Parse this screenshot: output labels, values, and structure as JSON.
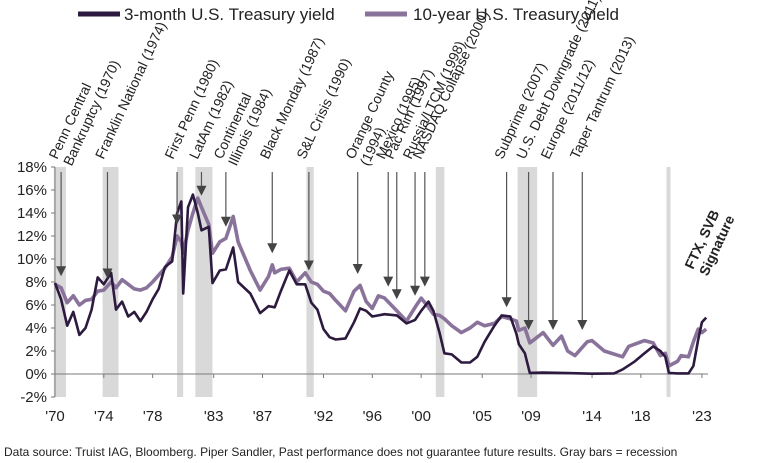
{
  "chart_data": {
    "type": "line",
    "title": "",
    "xlabel": "",
    "ylabel": "",
    "ylim": [
      -2,
      18
    ],
    "xlim": [
      1970,
      2023.5
    ],
    "yticks": [
      "18%",
      "16%",
      "14%",
      "12%",
      "10%",
      "8%",
      "6%",
      "4%",
      "2%",
      "0%",
      "-2%"
    ],
    "xticks": [
      {
        "label": "'70",
        "year": 1970
      },
      {
        "label": "'74",
        "year": 1974
      },
      {
        "label": "'78",
        "year": 1978
      },
      {
        "label": "'83",
        "year": 1983
      },
      {
        "label": "'87",
        "year": 1987
      },
      {
        "label": "'92",
        "year": 1992
      },
      {
        "label": "'96",
        "year": 1996
      },
      {
        "label": "'00",
        "year": 2000
      },
      {
        "label": "'05",
        "year": 2005
      },
      {
        "label": "'09",
        "year": 2009
      },
      {
        "label": "'14",
        "year": 2014
      },
      {
        "label": "'18",
        "year": 2018
      },
      {
        "label": "'23",
        "year": 2023
      }
    ],
    "legend": {
      "placement": "top"
    },
    "recessions": [
      [
        1969.9,
        1970.9
      ],
      [
        1973.9,
        1975.2
      ],
      [
        1980.0,
        1980.5
      ],
      [
        1981.5,
        1982.9
      ],
      [
        1990.6,
        1991.2
      ],
      [
        2001.2,
        2001.9
      ],
      [
        2007.9,
        2009.5
      ],
      [
        2020.1,
        2020.4
      ]
    ],
    "series": [
      {
        "name": "3-month U.S. Treasury yield",
        "color": "#2d1a3f",
        "points": [
          [
            1970,
            7.9
          ],
          [
            1970.5,
            6.5
          ],
          [
            1971,
            4.2
          ],
          [
            1971.5,
            5.4
          ],
          [
            1972,
            3.4
          ],
          [
            1972.5,
            4.0
          ],
          [
            1973,
            5.6
          ],
          [
            1973.5,
            8.4
          ],
          [
            1974,
            7.8
          ],
          [
            1974.6,
            8.8
          ],
          [
            1975,
            5.6
          ],
          [
            1975.5,
            6.3
          ],
          [
            1976,
            5.0
          ],
          [
            1976.5,
            5.4
          ],
          [
            1977,
            4.6
          ],
          [
            1977.5,
            5.4
          ],
          [
            1978,
            6.5
          ],
          [
            1978.5,
            7.4
          ],
          [
            1979,
            9.3
          ],
          [
            1979.6,
            9.8
          ],
          [
            1980.0,
            14.0
          ],
          [
            1980.35,
            15.0
          ],
          [
            1980.5,
            7.0
          ],
          [
            1980.9,
            14.5
          ],
          [
            1981.3,
            15.6
          ],
          [
            1981.7,
            14.0
          ],
          [
            1982.0,
            12.5
          ],
          [
            1982.6,
            12.8
          ],
          [
            1982.9,
            7.9
          ],
          [
            1983.5,
            9.0
          ],
          [
            1984.0,
            9.1
          ],
          [
            1984.6,
            11.0
          ],
          [
            1985.0,
            8.0
          ],
          [
            1986.0,
            7.0
          ],
          [
            1986.8,
            5.3
          ],
          [
            1987.5,
            5.9
          ],
          [
            1988.0,
            5.8
          ],
          [
            1988.5,
            7.2
          ],
          [
            1989.2,
            9.0
          ],
          [
            1989.8,
            7.8
          ],
          [
            1990.5,
            7.8
          ],
          [
            1991.0,
            6.2
          ],
          [
            1991.5,
            5.6
          ],
          [
            1992.0,
            3.9
          ],
          [
            1992.5,
            3.2
          ],
          [
            1993.0,
            3.0
          ],
          [
            1993.8,
            3.1
          ],
          [
            1994.5,
            4.5
          ],
          [
            1995.0,
            5.7
          ],
          [
            1995.5,
            5.5
          ],
          [
            1996.0,
            5.0
          ],
          [
            1997.0,
            5.2
          ],
          [
            1998.0,
            5.1
          ],
          [
            1998.8,
            4.4
          ],
          [
            1999.5,
            4.7
          ],
          [
            2000.0,
            5.5
          ],
          [
            2000.6,
            6.3
          ],
          [
            2001.0,
            5.5
          ],
          [
            2001.5,
            3.6
          ],
          [
            2001.9,
            1.8
          ],
          [
            2002.5,
            1.7
          ],
          [
            2003.3,
            1.0
          ],
          [
            2004.0,
            1.0
          ],
          [
            2004.6,
            1.5
          ],
          [
            2005.2,
            2.8
          ],
          [
            2006.0,
            4.2
          ],
          [
            2006.6,
            5.1
          ],
          [
            2007.3,
            5.0
          ],
          [
            2007.8,
            3.5
          ],
          [
            2008.0,
            2.6
          ],
          [
            2008.5,
            1.8
          ],
          [
            2008.9,
            0.1
          ],
          [
            2010.0,
            0.12
          ],
          [
            2012.0,
            0.08
          ],
          [
            2014.0,
            0.03
          ],
          [
            2015.8,
            0.05
          ],
          [
            2016.5,
            0.4
          ],
          [
            2017.5,
            1.1
          ],
          [
            2018.3,
            1.8
          ],
          [
            2019.0,
            2.4
          ],
          [
            2019.6,
            2.0
          ],
          [
            2020.0,
            1.5
          ],
          [
            2020.3,
            0.1
          ],
          [
            2021.0,
            0.05
          ],
          [
            2021.9,
            0.05
          ],
          [
            2022.3,
            0.7
          ],
          [
            2022.7,
            3.0
          ],
          [
            2023.0,
            4.5
          ],
          [
            2023.35,
            4.9
          ]
        ]
      },
      {
        "name": "10-year U.S. Treasury yield",
        "color": "#8a739b",
        "points": [
          [
            1970,
            7.8
          ],
          [
            1970.5,
            7.5
          ],
          [
            1971,
            6.2
          ],
          [
            1971.5,
            6.8
          ],
          [
            1972,
            6.0
          ],
          [
            1972.5,
            6.4
          ],
          [
            1973,
            6.5
          ],
          [
            1973.5,
            7.2
          ],
          [
            1974,
            7.3
          ],
          [
            1974.6,
            8.0
          ],
          [
            1975,
            7.5
          ],
          [
            1975.5,
            8.2
          ],
          [
            1976,
            7.8
          ],
          [
            1976.5,
            7.4
          ],
          [
            1977,
            7.3
          ],
          [
            1977.5,
            7.5
          ],
          [
            1978,
            8.0
          ],
          [
            1978.5,
            8.6
          ],
          [
            1979,
            9.2
          ],
          [
            1979.6,
            10.2
          ],
          [
            1980.0,
            12.0
          ],
          [
            1980.35,
            11.5
          ],
          [
            1980.5,
            10.5
          ],
          [
            1980.9,
            12.5
          ],
          [
            1981.3,
            14.0
          ],
          [
            1981.7,
            15.3
          ],
          [
            1982.0,
            14.5
          ],
          [
            1982.6,
            13.0
          ],
          [
            1982.9,
            10.5
          ],
          [
            1983.5,
            11.5
          ],
          [
            1984.0,
            11.8
          ],
          [
            1984.6,
            13.7
          ],
          [
            1985.0,
            11.5
          ],
          [
            1986.0,
            9.0
          ],
          [
            1986.8,
            7.3
          ],
          [
            1987.5,
            8.5
          ],
          [
            1987.8,
            9.5
          ],
          [
            1988.0,
            8.8
          ],
          [
            1988.5,
            9.1
          ],
          [
            1989.2,
            9.2
          ],
          [
            1989.8,
            8.0
          ],
          [
            1990.5,
            8.8
          ],
          [
            1991.0,
            8.0
          ],
          [
            1991.5,
            7.8
          ],
          [
            1992.0,
            7.2
          ],
          [
            1992.5,
            7.0
          ],
          [
            1993.0,
            6.4
          ],
          [
            1993.8,
            5.5
          ],
          [
            1994.5,
            7.2
          ],
          [
            1995.0,
            7.7
          ],
          [
            1995.5,
            6.3
          ],
          [
            1996.0,
            5.7
          ],
          [
            1996.5,
            6.8
          ],
          [
            1997.0,
            6.6
          ],
          [
            1998.0,
            5.5
          ],
          [
            1998.8,
            4.6
          ],
          [
            1999.5,
            5.8
          ],
          [
            2000.0,
            6.6
          ],
          [
            2000.6,
            5.8
          ],
          [
            2001.0,
            5.2
          ],
          [
            2001.5,
            5.1
          ],
          [
            2001.9,
            4.8
          ],
          [
            2002.5,
            4.2
          ],
          [
            2003.3,
            3.6
          ],
          [
            2004.0,
            4.0
          ],
          [
            2004.6,
            4.5
          ],
          [
            2005.2,
            4.2
          ],
          [
            2006.0,
            4.4
          ],
          [
            2006.6,
            5.0
          ],
          [
            2007.3,
            4.8
          ],
          [
            2007.8,
            4.6
          ],
          [
            2008.0,
            3.8
          ],
          [
            2008.5,
            4.0
          ],
          [
            2008.9,
            2.7
          ],
          [
            2010.0,
            3.6
          ],
          [
            2010.8,
            2.5
          ],
          [
            2011.5,
            3.3
          ],
          [
            2012.0,
            2.0
          ],
          [
            2012.6,
            1.6
          ],
          [
            2013.6,
            2.8
          ],
          [
            2014.0,
            2.9
          ],
          [
            2015.0,
            2.0
          ],
          [
            2016.5,
            1.5
          ],
          [
            2017.0,
            2.4
          ],
          [
            2018.3,
            2.9
          ],
          [
            2019.0,
            2.7
          ],
          [
            2019.6,
            1.6
          ],
          [
            2020.0,
            1.8
          ],
          [
            2020.3,
            0.7
          ],
          [
            2021.0,
            1.1
          ],
          [
            2021.3,
            1.6
          ],
          [
            2021.9,
            1.5
          ],
          [
            2022.3,
            2.8
          ],
          [
            2022.7,
            3.9
          ],
          [
            2023.0,
            3.6
          ],
          [
            2023.35,
            3.9
          ]
        ]
      }
    ],
    "annotations": [
      {
        "lines": [
          "Penn Central",
          "Bankruptcy (1970)"
        ],
        "year": 1970.5,
        "bold": false
      },
      {
        "lines": [
          "Franklin National (1974)"
        ],
        "year": 1974.3,
        "bold": false
      },
      {
        "lines": [
          "First Penn (1980)"
        ],
        "year": 1980.0,
        "bold": false
      },
      {
        "lines": [
          "LatAm (1982)"
        ],
        "year": 1982.0,
        "bold": false
      },
      {
        "lines": [
          "Continental",
          "Illinois (1984)"
        ],
        "year": 1984.0,
        "bold": false
      },
      {
        "lines": [
          "Black Monday (1987)"
        ],
        "year": 1987.8,
        "bold": false
      },
      {
        "lines": [
          "S&L Crisis (1990)"
        ],
        "year": 1990.8,
        "bold": false
      },
      {
        "lines": [
          "Orange County",
          "(1994)"
        ],
        "year": 1994.8,
        "bold": false
      },
      {
        "lines": [
          "Mexico (1995)"
        ],
        "year": 1997.3,
        "bold": false
      },
      {
        "lines": [
          "Pac Rim (1997)"
        ],
        "year": 1998.0,
        "bold": false
      },
      {
        "lines": [
          "Russia/LTCM (1998)"
        ],
        "year": 1999.5,
        "bold": false
      },
      {
        "lines": [
          "NASDAQ Collapse (2000)"
        ],
        "year": 2000.3,
        "bold": false
      },
      {
        "lines": [
          "Subprime (2007)"
        ],
        "year": 2007.0,
        "bold": false
      },
      {
        "lines": [
          "U.S. Debt Downgrade (2011)"
        ],
        "year": 2008.8,
        "bold": false
      },
      {
        "lines": [
          "Europe (2011/12)"
        ],
        "year": 2010.8,
        "bold": false
      },
      {
        "lines": [
          "Taper Tantrum (2013)"
        ],
        "year": 2013.2,
        "bold": false
      },
      {
        "lines": [
          "FTX, SVB",
          "Signature"
        ],
        "year": 2022.6,
        "bold": true
      }
    ]
  },
  "footer": "Data source: Truist IAG, Bloomberg. Piper Sandler, Past performance does not guarantee future results. Gray bars = recession"
}
